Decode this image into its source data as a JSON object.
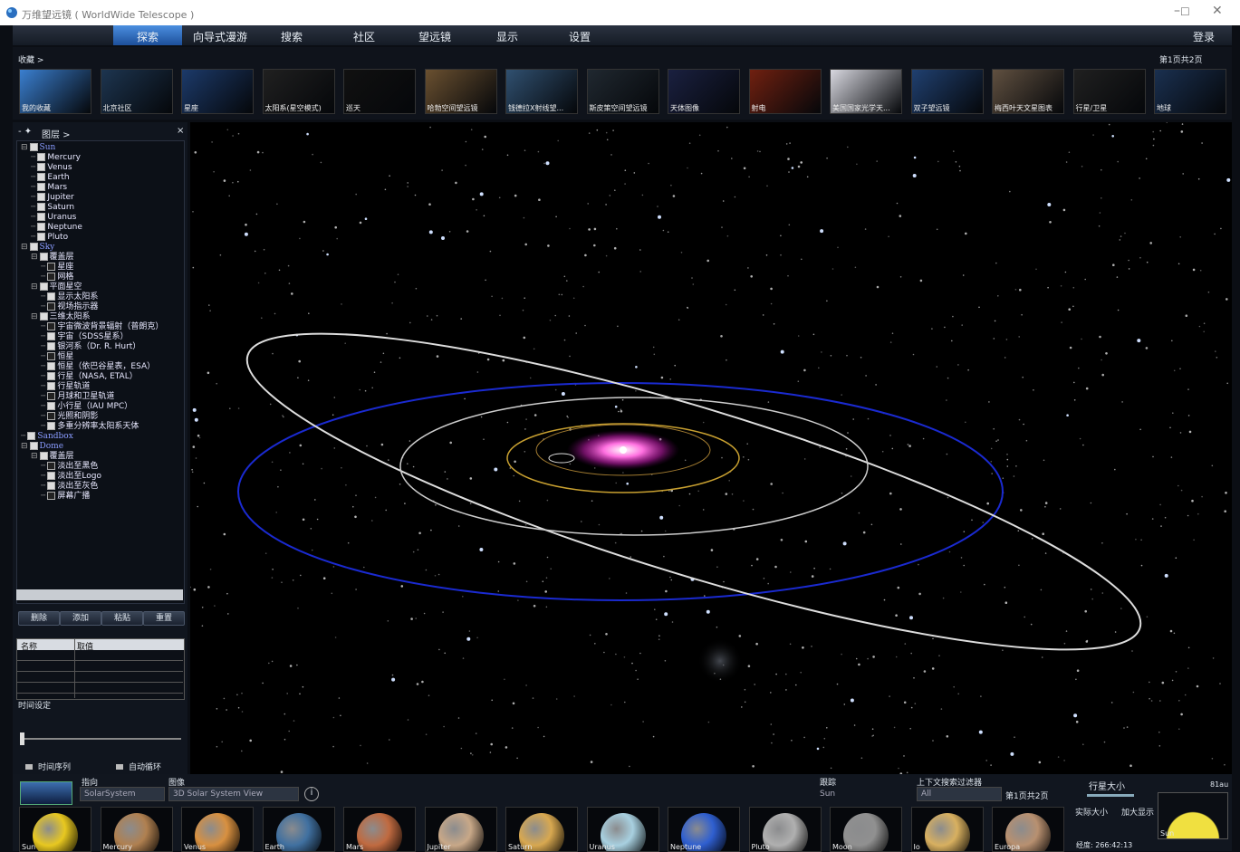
{
  "window": {
    "title": "万维望远镜 ( WorldWide Telescope )"
  },
  "menu": {
    "items": [
      "探索",
      "向导式漫游",
      "搜索",
      "社区",
      "望远镜",
      "显示",
      "设置"
    ],
    "login": "登录"
  },
  "favorites": {
    "label": "收藏 >",
    "pager": "第1页共2页",
    "items": [
      "我的收藏",
      "北京社区",
      "星座",
      "太阳系(星空模式)",
      "巡天",
      "哈勃空间望远镜",
      "钱德拉X射线望...",
      "斯皮策空间望远镜",
      "天体图像",
      "射电",
      "美国国家光学天...",
      "双子望远镜",
      "梅西叶天文星图表",
      "行星/卫星",
      "地球"
    ]
  },
  "layers": {
    "title": "图层 >",
    "tree": [
      {
        "label": "Sun",
        "checked": true,
        "children": [
          {
            "label": "Mercury",
            "checked": true
          },
          {
            "label": "Venus",
            "checked": true
          },
          {
            "label": "Earth",
            "checked": true
          },
          {
            "label": "Mars",
            "checked": true
          },
          {
            "label": "Jupiter",
            "checked": true
          },
          {
            "label": "Saturn",
            "checked": true
          },
          {
            "label": "Uranus",
            "checked": true
          },
          {
            "label": "Neptune",
            "checked": true
          },
          {
            "label": "Pluto",
            "checked": true
          }
        ]
      },
      {
        "label": "Sky",
        "checked": true,
        "children": [
          {
            "label": "覆盖层",
            "checked": true,
            "children": [
              {
                "label": "星座",
                "checked": false
              },
              {
                "label": "网格",
                "checked": false
              }
            ]
          },
          {
            "label": "平面星空",
            "checked": true,
            "children": [
              {
                "label": "显示太阳系",
                "checked": true
              },
              {
                "label": "视场指示器",
                "checked": false
              }
            ]
          },
          {
            "label": "三维太阳系",
            "checked": true,
            "children": [
              {
                "label": "宇宙微波背景辐射（普朗克）",
                "checked": false
              },
              {
                "label": "宇宙（SDSS星系）",
                "checked": true
              },
              {
                "label": "银河系（Dr. R. Hurt）",
                "checked": true
              },
              {
                "label": "恒星",
                "checked": false
              },
              {
                "label": "恒星（依巴谷星表，ESA）",
                "checked": true
              },
              {
                "label": "行星（NASA, ETAL）",
                "checked": true
              },
              {
                "label": "行星轨道",
                "checked": true
              },
              {
                "label": "月球和卫星轨道",
                "checked": false
              },
              {
                "label": "小行星（IAU MPC）",
                "checked": true
              },
              {
                "label": "光照和阴影",
                "checked": false
              },
              {
                "label": "多重分辨率太阳系天体",
                "checked": true
              }
            ]
          }
        ]
      },
      {
        "label": "Sandbox",
        "checked": true
      },
      {
        "label": "Dome",
        "checked": true,
        "children": [
          {
            "label": "覆盖层",
            "checked": true,
            "children": [
              {
                "label": "淡出至黑色",
                "checked": false
              },
              {
                "label": "淡出至Logo",
                "checked": true
              },
              {
                "label": "淡出至灰色",
                "checked": true
              },
              {
                "label": "屏幕广播",
                "checked": false
              }
            ]
          }
        ]
      }
    ],
    "buttons": [
      "删除",
      "添加",
      "粘贴",
      "重置"
    ],
    "table_header": [
      "名称",
      "取值"
    ],
    "time_label": "时间设定",
    "options": [
      "时间序列",
      "自动循环"
    ]
  },
  "bottom": {
    "look_at_label": "指向",
    "look_at_value": "SolarSystem",
    "imagery_label": "图像",
    "imagery_value": "3D Solar System View",
    "track_label": "跟踪",
    "track_value": "Sun",
    "filter_label": "上下文搜索过滤器",
    "filter_value": "All",
    "pager": "第1页共2页",
    "planet_size_label": "行星大小",
    "planet_size_value": "81au",
    "size_options": [
      "实际大小",
      "加大显示"
    ],
    "target": "Sun",
    "coords": "经度:  266:42:13",
    "thumbnails": [
      {
        "label": "Sun",
        "color": "#e8c820"
      },
      {
        "label": "Mercury",
        "color": "#b08050"
      },
      {
        "label": "Venus",
        "color": "#d89040"
      },
      {
        "label": "Earth",
        "color": "#4070a0"
      },
      {
        "label": "Mars",
        "color": "#c06a40"
      },
      {
        "label": "Jupiter",
        "color": "#c8a888"
      },
      {
        "label": "Saturn",
        "color": "#d8a850"
      },
      {
        "label": "Uranus",
        "color": "#a8d0e0"
      },
      {
        "label": "Neptune",
        "color": "#2f5fd0"
      },
      {
        "label": "Pluto",
        "color": "#b0b0b0"
      },
      {
        "label": "Moon",
        "color": "#909090"
      },
      {
        "label": "Io",
        "color": "#d8b060"
      },
      {
        "label": "Europa",
        "color": "#b89070"
      }
    ]
  }
}
